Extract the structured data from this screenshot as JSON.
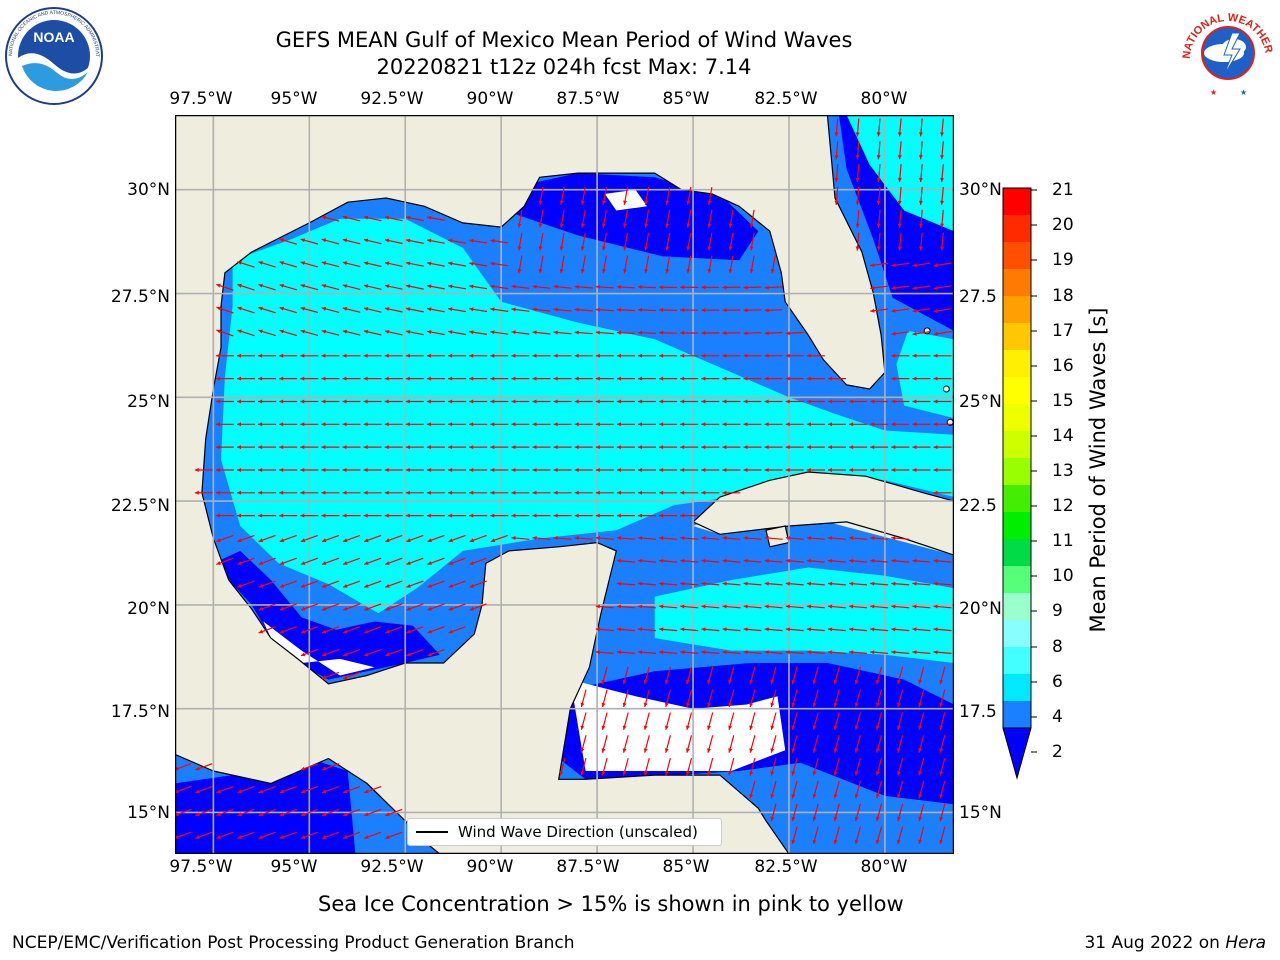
{
  "header": {
    "title_line1": "GEFS MEAN Gulf of Mexico Mean Period of Wind Waves",
    "title_line2": "20220821 t12z 024h fcst   Max: 7.14"
  },
  "logos": {
    "noaa_text": "NOAA",
    "noaa_ring": "NATIONAL OCEANIC AND ATMOSPHERIC ADMINISTRATION · U.S. DEPARTMENT OF COMMERCE",
    "nws_ring": "NATIONAL WEATHER SERVICE"
  },
  "map": {
    "lon_labels": [
      "97.5°W",
      "95°W",
      "92.5°W",
      "90°W",
      "87.5°W",
      "85°W",
      "82.5°W",
      "80°W"
    ],
    "lat_labels_left": [
      "30°N",
      "27.5°N",
      "25°N",
      "22.5°N",
      "20°N",
      "17.5°N",
      "15°N"
    ],
    "lat_labels_right": [
      "30°N",
      "27.5",
      "25°N",
      "22.5",
      "20°N",
      "17.5",
      "15°N"
    ],
    "lon_range": [
      -98.5,
      -78.2
    ],
    "lat_range": [
      14.0,
      31.8
    ],
    "colors": {
      "land": "#efedde",
      "ocean_2_4": "#1a80ff",
      "ocean_0_2": "#0000ff",
      "ocean_4_6": "#00ffff",
      "arrow": "#ff0000",
      "grid": "#b0b0b0"
    },
    "legend_label": "Wind Wave Direction (unscaled)"
  },
  "colorbar": {
    "title": "Mean Period of Wind Waves [s]",
    "ticks": [
      "21",
      "20",
      "19",
      "18",
      "17",
      "16",
      "15",
      "14",
      "13",
      "12",
      "11",
      "10",
      "9",
      "8",
      "7",
      "6",
      "5",
      "4",
      "3",
      "2"
    ],
    "tick_labels": [
      "21",
      "20",
      "19",
      "18",
      "17",
      "16",
      "15",
      "14",
      "13",
      "12",
      "11",
      "10",
      "9",
      "8",
      "6",
      "4",
      "2"
    ],
    "colors": [
      "#ff0000",
      "#ff2a00",
      "#ff5000",
      "#ff7a00",
      "#ffa000",
      "#ffc800",
      "#ffef00",
      "#fff400",
      "#eeff00",
      "#ccff00",
      "#a0ff00",
      "#60ff00",
      "#00ee00",
      "#00dd33",
      "#55ff77",
      "#99ffcc",
      "#88ffff",
      "#44ffff",
      "#00ffff",
      "#00e8ff",
      "#1a80ff",
      "#0000ff"
    ]
  },
  "sea_ice_note": "Sea Ice Concentration > 15% is shown in pink to yellow",
  "footer": {
    "left": "NCEP/EMC/Verification Post Processing Product Generation Branch",
    "right_date": "31 Aug 2022 on ",
    "right_host": "Hera"
  }
}
